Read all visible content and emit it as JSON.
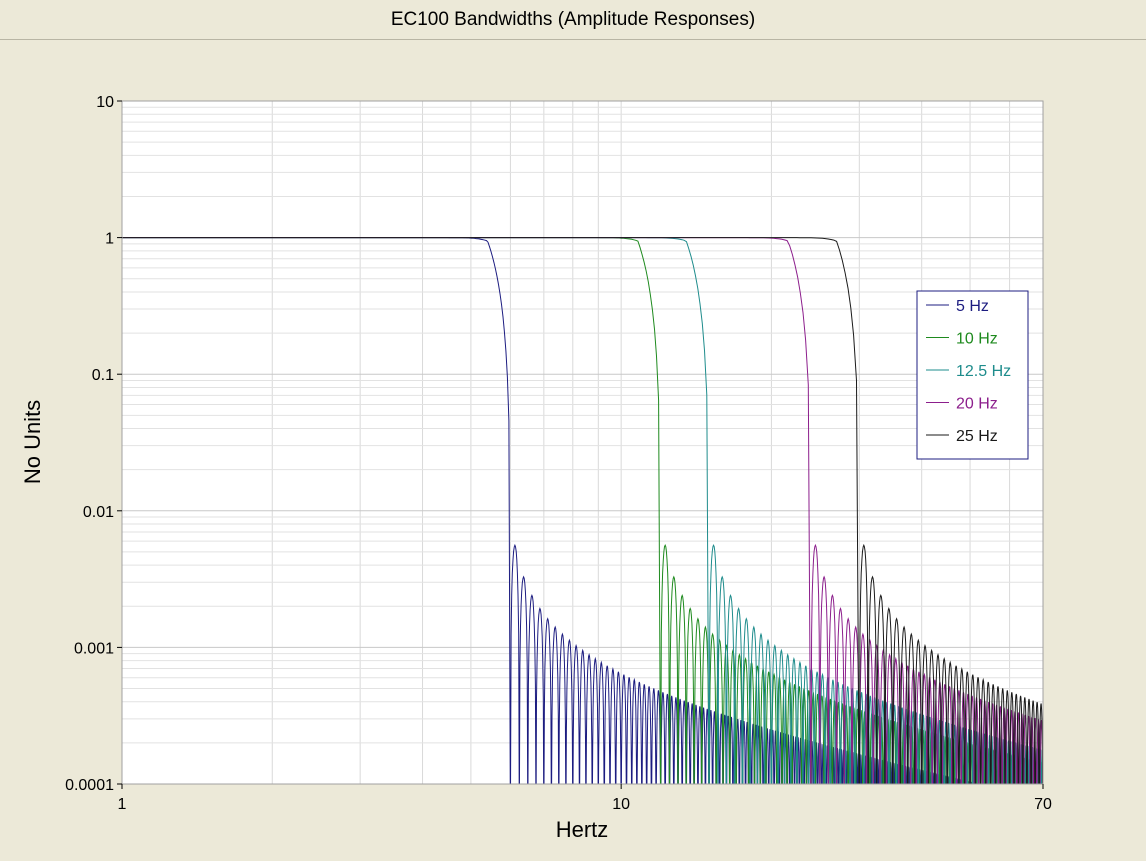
{
  "chart_data": {
    "type": "line",
    "title": "EC100 Bandwidths (Amplitude Responses)",
    "xlabel": "Hertz",
    "ylabel": "No Units",
    "x_scale": "log",
    "y_scale": "log",
    "xlim": [
      1,
      70
    ],
    "ylim": [
      0.0001,
      10
    ],
    "x_ticks": [
      1,
      10,
      70
    ],
    "x_tick_labels": [
      "1",
      "10",
      "70"
    ],
    "y_ticks": [
      0.0001,
      0.001,
      0.01,
      0.1,
      1,
      10
    ],
    "y_tick_labels": [
      "0.0001",
      "0.001",
      "0.01",
      "0.1",
      "1",
      "10"
    ],
    "grid": true,
    "legend_position": "right",
    "series": [
      {
        "name": "5 Hz",
        "bandwidth": 5,
        "color": "#1C1C80",
        "first_null": 6.0,
        "null_spacing": 0.25,
        "amplitude_at_1_hz": 1.0
      },
      {
        "name": "10 Hz",
        "bandwidth": 10,
        "color": "#1E8A1E",
        "first_null": 12.0,
        "null_spacing": 0.5,
        "amplitude_at_1_hz": 1.0
      },
      {
        "name": "12.5 Hz",
        "bandwidth": 12.5,
        "color": "#1E8C8C",
        "first_null": 15.0,
        "null_spacing": 0.625,
        "amplitude_at_1_hz": 1.0
      },
      {
        "name": "20 Hz",
        "bandwidth": 20,
        "color": "#8C1E8C",
        "first_null": 24.0,
        "null_spacing": 1.0,
        "amplitude_at_1_hz": 1.0
      },
      {
        "name": "25 Hz",
        "bandwidth": 25,
        "color": "#1A1A1A",
        "first_null": 30.0,
        "null_spacing": 1.25,
        "amplitude_at_1_hz": 1.0
      }
    ]
  },
  "legend_border_color": "#1C1C80"
}
